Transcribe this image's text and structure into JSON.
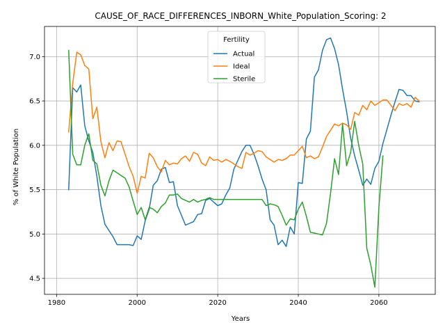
{
  "chart_data": {
    "type": "line",
    "title": "CAUSE_OF_RACE_DIFFERENCES_INBORN_White_Population_Scoring: 2",
    "xlabel": "Years",
    "ylabel": "% of White Population",
    "xlim": [
      1977,
      2074
    ],
    "ylim": [
      4.32,
      7.34
    ],
    "xticks": [
      1980,
      2000,
      2020,
      2040,
      2060
    ],
    "yticks": [
      4.5,
      5.0,
      5.5,
      6.0,
      6.5,
      7.0
    ],
    "grid": true,
    "legend": {
      "title": "Fertility",
      "placement": "upper-center"
    },
    "series": [
      {
        "name": "Actual",
        "color": "#1f77b4",
        "x": [
          1983,
          1984,
          1985,
          1986,
          1987,
          1988,
          1989,
          1990,
          1991,
          1992,
          1993,
          1994,
          1995,
          1996,
          1997,
          1998,
          1999,
          2000,
          2001,
          2002,
          2003,
          2004,
          2005,
          2006,
          2007,
          2008,
          2009,
          2010,
          2011,
          2012,
          2013,
          2014,
          2015,
          2016,
          2017,
          2018,
          2019,
          2020,
          2021,
          2022,
          2023,
          2024,
          2025,
          2026,
          2027,
          2028,
          2029,
          2030,
          2031,
          2032,
          2033,
          2034,
          2035,
          2036,
          2037,
          2038,
          2039,
          2040,
          2041,
          2042,
          2043,
          2044,
          2045,
          2046,
          2047,
          2048,
          2049,
          2050,
          2051,
          2052,
          2053,
          2054,
          2055,
          2056,
          2057,
          2058,
          2059,
          2060,
          2061,
          2062,
          2063,
          2064,
          2065,
          2066,
          2067,
          2068,
          2069,
          2070
        ],
        "y": [
          5.5,
          6.65,
          6.6,
          6.68,
          6.22,
          6.05,
          5.92,
          5.65,
          5.32,
          5.11,
          5.04,
          4.97,
          4.88,
          4.88,
          4.88,
          4.88,
          4.87,
          4.98,
          4.94,
          5.15,
          5.28,
          5.55,
          5.6,
          5.73,
          5.75,
          5.58,
          5.59,
          5.32,
          5.21,
          5.1,
          5.12,
          5.14,
          5.22,
          5.23,
          5.38,
          5.4,
          5.36,
          5.32,
          5.34,
          5.44,
          5.52,
          5.73,
          5.83,
          5.93,
          6.0,
          6.0,
          5.9,
          5.77,
          5.62,
          5.5,
          5.16,
          5.1,
          4.88,
          4.93,
          4.86,
          5.08,
          5.0,
          5.58,
          5.57,
          6.07,
          6.16,
          6.77,
          6.85,
          7.07,
          7.19,
          7.21,
          7.09,
          6.91,
          6.63,
          6.38,
          6.08,
          5.88,
          5.72,
          5.55,
          5.62,
          5.56,
          5.74,
          5.82,
          6.02,
          6.18,
          6.34,
          6.49,
          6.63,
          6.62,
          6.56,
          6.56,
          6.5,
          6.49
        ]
      },
      {
        "name": "Ideal",
        "color": "#ff7f0e",
        "x": [
          1983,
          1984,
          1985,
          1986,
          1987,
          1988,
          1989,
          1990,
          1991,
          1992,
          1993,
          1994,
          1995,
          1996,
          1997,
          1998,
          1999,
          2000,
          2001,
          2002,
          2003,
          2004,
          2005,
          2006,
          2007,
          2008,
          2009,
          2010,
          2011,
          2012,
          2013,
          2014,
          2015,
          2016,
          2017,
          2018,
          2019,
          2020,
          2021,
          2022,
          2023,
          2024,
          2025,
          2026,
          2027,
          2028,
          2029,
          2030,
          2031,
          2032,
          2033,
          2034,
          2035,
          2036,
          2037,
          2038,
          2039,
          2040,
          2041,
          2042,
          2043,
          2044,
          2045,
          2046,
          2047,
          2048,
          2049,
          2050,
          2051,
          2052,
          2053,
          2054,
          2055,
          2056,
          2057,
          2058,
          2059,
          2060,
          2061,
          2062,
          2063,
          2064,
          2065,
          2066,
          2067,
          2068,
          2069,
          2070
        ],
        "y": [
          6.15,
          6.7,
          7.05,
          7.02,
          6.9,
          6.86,
          6.3,
          6.43,
          6.04,
          5.86,
          6.03,
          5.94,
          6.05,
          6.04,
          5.9,
          5.76,
          5.65,
          5.46,
          5.65,
          5.63,
          5.91,
          5.86,
          5.76,
          5.7,
          5.83,
          5.78,
          5.8,
          5.79,
          5.85,
          5.88,
          5.82,
          5.92,
          5.9,
          5.8,
          5.77,
          5.87,
          5.83,
          5.84,
          5.81,
          5.84,
          5.82,
          5.79,
          5.76,
          5.74,
          5.92,
          5.89,
          5.91,
          5.94,
          5.93,
          5.87,
          5.84,
          5.81,
          5.84,
          5.83,
          5.85,
          5.89,
          5.89,
          5.94,
          5.99,
          5.86,
          5.88,
          5.85,
          5.87,
          5.98,
          6.1,
          6.17,
          6.24,
          6.22,
          6.25,
          6.23,
          6.18,
          6.37,
          6.34,
          6.45,
          6.4,
          6.5,
          6.45,
          6.48,
          6.51,
          6.51,
          6.45,
          6.39,
          6.47,
          6.45,
          6.47,
          6.43,
          6.54,
          6.5
        ]
      },
      {
        "name": "Sterile",
        "color": "#2ca02c",
        "x": [
          1983,
          1984,
          1985,
          1986,
          1987,
          1988,
          1989,
          1990,
          1991,
          1992,
          1993,
          1994,
          1995,
          1996,
          1997,
          1998,
          1999,
          2000,
          2001,
          2002,
          2003,
          2004,
          2005,
          2006,
          2007,
          2008,
          2009,
          2010,
          2011,
          2012,
          2013,
          2014,
          2015,
          2016,
          2017,
          2018,
          2019,
          2020,
          2021,
          2022,
          2023,
          2024,
          2025,
          2026,
          2027,
          2028,
          2029,
          2030,
          2031,
          2032,
          2033,
          2034,
          2035,
          2036,
          2037,
          2038,
          2039,
          2040,
          2041,
          2042,
          2043,
          2044,
          2045,
          2046,
          2047,
          2048,
          2049,
          2050,
          2051,
          2052,
          2053,
          2054,
          2055,
          2056,
          2057,
          2058,
          2059,
          2060,
          2061
        ],
        "y": [
          7.07,
          5.9,
          5.78,
          5.78,
          6.0,
          6.13,
          5.83,
          5.79,
          5.55,
          5.43,
          5.6,
          5.72,
          5.69,
          5.66,
          5.63,
          5.53,
          5.37,
          5.22,
          5.3,
          5.16,
          5.3,
          5.28,
          5.24,
          5.31,
          5.35,
          5.44,
          5.44,
          5.45,
          5.4,
          5.38,
          5.36,
          5.39,
          5.36,
          5.38,
          5.39,
          5.41,
          5.39,
          5.39,
          5.39,
          5.39,
          5.39,
          5.39,
          5.39,
          5.39,
          5.39,
          5.39,
          5.39,
          5.39,
          5.39,
          5.32,
          5.34,
          5.33,
          5.31,
          5.21,
          5.1,
          5.17,
          5.16,
          5.28,
          5.36,
          5.2,
          5.02,
          5.01,
          5.0,
          4.99,
          5.12,
          5.46,
          5.85,
          5.67,
          6.24,
          5.77,
          5.92,
          6.27,
          6.0,
          5.79,
          4.84,
          4.65,
          4.4,
          5.3,
          5.88
        ]
      }
    ]
  }
}
